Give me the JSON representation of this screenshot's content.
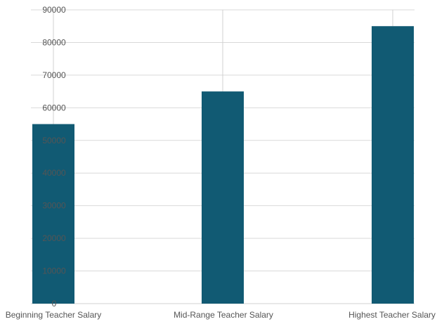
{
  "chart_data": {
    "type": "bar",
    "categories": [
      "Beginning Teacher Salary",
      "Mid-Range Teacher Salary",
      "Highest Teacher Salary"
    ],
    "series": [
      {
        "values": [
          55000,
          65000,
          85000
        ],
        "color": "#115a73"
      }
    ],
    "ylim": [
      0,
      90000
    ],
    "yticks": [
      0,
      10000,
      20000,
      30000,
      40000,
      50000,
      60000,
      70000,
      80000,
      90000
    ],
    "grid": true,
    "legend": "none",
    "title": "",
    "xlabel": "",
    "ylabel": ""
  }
}
